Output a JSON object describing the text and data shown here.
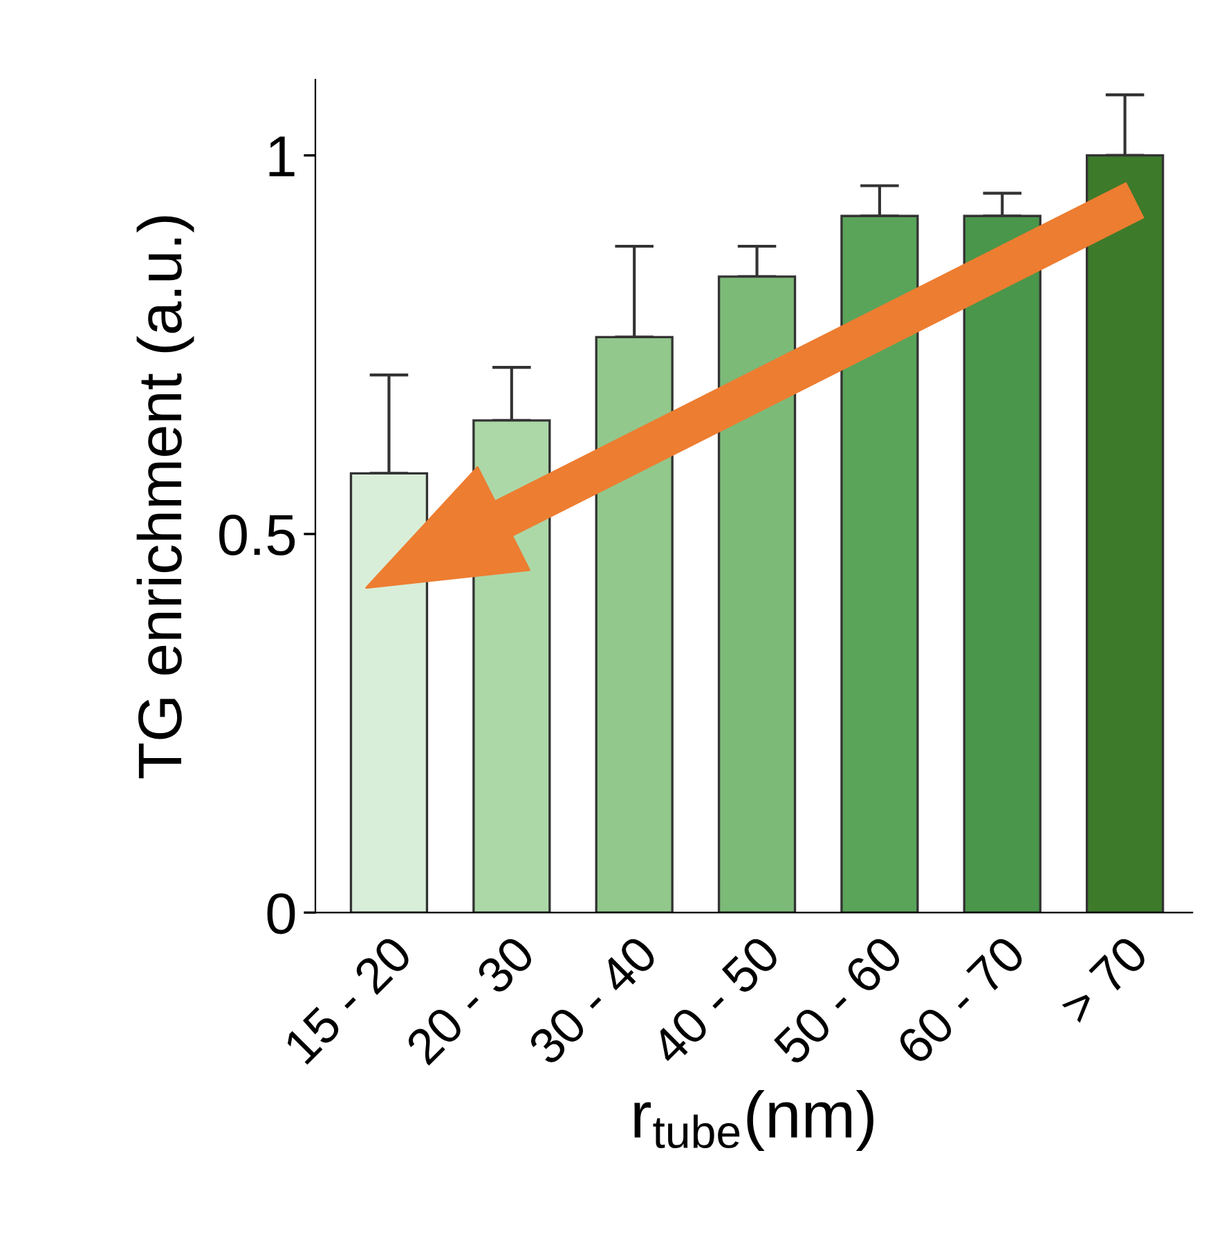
{
  "chart_data": {
    "type": "bar",
    "xlabel": "r$_{tube}$(nm)",
    "ylabel": "TG enrichment (a.u.)",
    "categories": [
      "15 - 20",
      "20 - 30",
      "30 - 40",
      "40 - 50",
      "50 - 60",
      "60 - 70",
      "> 70"
    ],
    "values": [
      0.58,
      0.65,
      0.76,
      0.84,
      0.92,
      0.92,
      1.0
    ],
    "errors": [
      [
        0.58,
        0.71
      ],
      [
        0.65,
        0.72
      ],
      [
        0.76,
        0.88
      ],
      [
        0.84,
        0.88
      ],
      [
        0.92,
        0.96
      ],
      [
        0.92,
        0.95
      ],
      [
        1.0,
        1.08
      ]
    ],
    "colors": [
      "#d9eed8",
      "#acd8a8",
      "#92c88c",
      "#7cba78",
      "#5aa45a",
      "#4a964a",
      "#3d7a2a"
    ],
    "ylim": [
      0,
      1.1
    ],
    "yticks": [
      0,
      0.5,
      1
    ],
    "grid": false
  }
}
